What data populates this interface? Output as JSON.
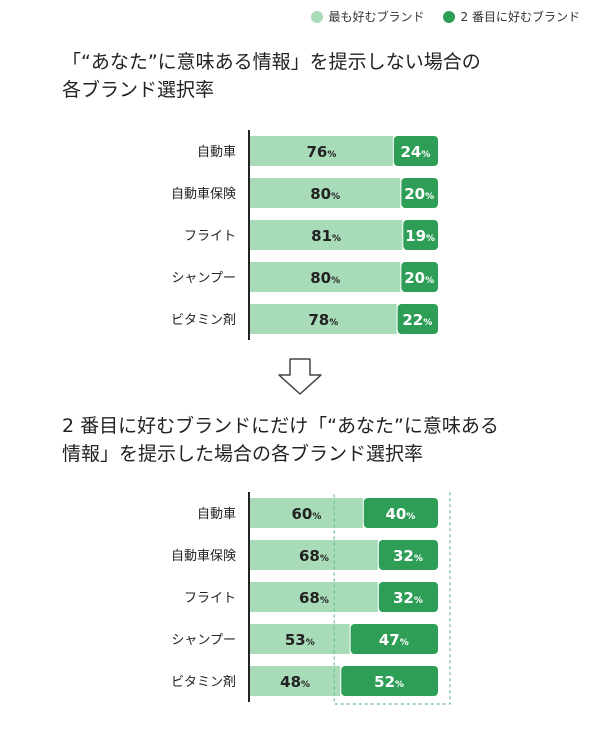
{
  "legend": {
    "first_label": "最も好むブランド",
    "second_label": "2 番目に好むブランド"
  },
  "colors": {
    "first": "#a8dbb8",
    "second": "#2e9e57",
    "axis": "#222222",
    "highlight_border": "#6cc08c"
  },
  "headings": {
    "h1": "「“あなた”に意味ある情報」を提示しない場合の\n各ブランド選択率",
    "h2": "2 番目に好むブランドにだけ「“あなた”に意味ある\n情報」を提示した場合の各ブランド選択率"
  },
  "chart_data": [
    {
      "type": "bar",
      "stacked": true,
      "orientation": "horizontal",
      "categories": [
        "自動車",
        "自動車保険",
        "フライト",
        "シャンプー",
        "ビタミン剤"
      ],
      "series": [
        {
          "name": "最も好むブランド",
          "values": [
            76,
            80,
            81,
            80,
            78
          ]
        },
        {
          "name": "2 番目に好むブランド",
          "values": [
            24,
            20,
            19,
            20,
            22
          ]
        }
      ],
      "unit": "%",
      "xlim": [
        0,
        100
      ]
    },
    {
      "type": "bar",
      "stacked": true,
      "orientation": "horizontal",
      "categories": [
        "自動車",
        "自動車保険",
        "フライト",
        "シャンプー",
        "ビタミン剤"
      ],
      "series": [
        {
          "name": "最も好むブランド",
          "values": [
            60,
            68,
            68,
            53,
            48
          ]
        },
        {
          "name": "2 番目に好むブランド",
          "values": [
            40,
            32,
            32,
            47,
            52
          ]
        }
      ],
      "unit": "%",
      "xlim": [
        0,
        100
      ]
    }
  ]
}
